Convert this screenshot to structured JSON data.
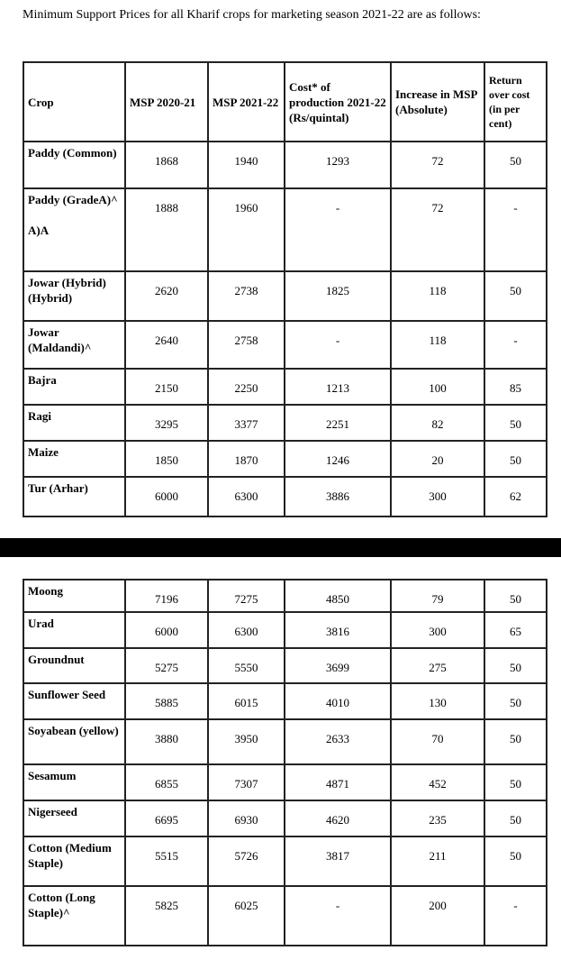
{
  "intro": "Minimum Support Prices for all Kharif crops for marketing season 2021-22 are as follows:",
  "headers": [
    "Crop",
    "MSP 2020-21",
    "MSP 2021-22",
    "Cost* of production 2021-22 (Rs/quintal)",
    "Increase in MSP (Absolute)",
    "Return over cost (in per cent)"
  ],
  "table1": [
    [
      "Paddy (Common)",
      "1868",
      "1940",
      "1293",
      "72",
      "50"
    ],
    [
      "Paddy (GradeA)^\n\nA)A",
      "1888",
      "1960",
      "-",
      "72",
      "-"
    ],
    [
      "Jowar (Hybrid) (Hybrid)",
      "2620",
      "2738",
      "1825",
      "118",
      "50"
    ],
    [
      "Jowar (Maldandi)^",
      "2640",
      "2758",
      "-",
      "118",
      "-"
    ],
    [
      "Bajra",
      "2150",
      "2250",
      "1213",
      "100",
      "85"
    ],
    [
      "Ragi",
      "3295",
      "3377",
      "2251",
      "82",
      "50"
    ],
    [
      "Maize",
      "1850",
      "1870",
      "1246",
      "20",
      "50"
    ],
    [
      "Tur (Arhar)",
      "6000",
      "6300",
      "3886",
      "300",
      "62"
    ]
  ],
  "table2": [
    [
      "Moong",
      "7196",
      "7275",
      "4850",
      "79",
      "50"
    ],
    [
      "Urad",
      "6000",
      "6300",
      "3816",
      "300",
      "65"
    ],
    [
      "Groundnut",
      "5275",
      "5550",
      "3699",
      "275",
      "50"
    ],
    [
      "Sunflower Seed",
      "5885",
      "6015",
      "4010",
      "130",
      "50"
    ],
    [
      "Soyabean (yellow)",
      "3880",
      "3950",
      "2633",
      "70",
      "50"
    ],
    [
      "Sesamum",
      "6855",
      "7307",
      "4871",
      "452",
      "50"
    ],
    [
      "Nigerseed",
      "6695",
      "6930",
      "4620",
      "235",
      "50"
    ],
    [
      "Cotton (Medium Staple)",
      "5515",
      "5726",
      "3817",
      "211",
      "50"
    ],
    [
      "Cotton (Long Staple)^",
      "5825",
      "6025",
      "-",
      "200",
      "-"
    ]
  ]
}
